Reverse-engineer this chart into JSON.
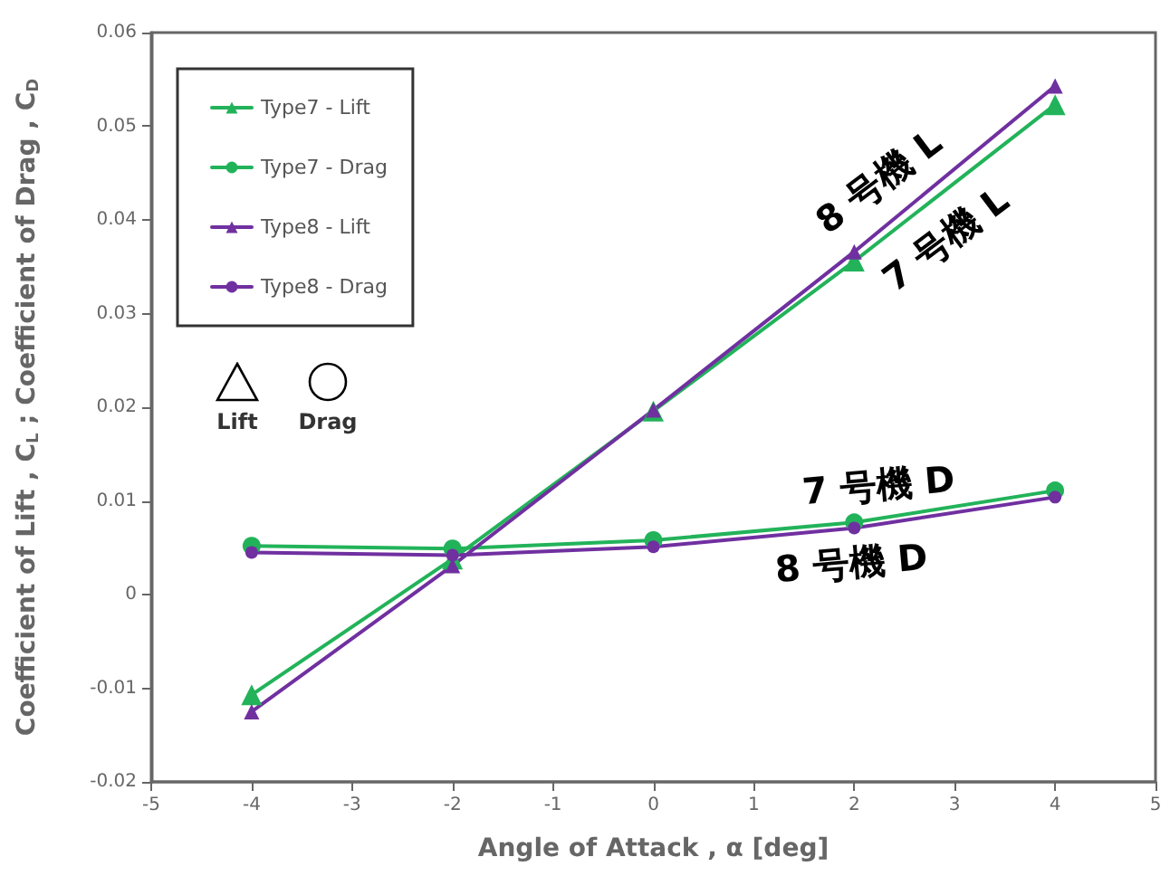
{
  "chart_data": {
    "type": "line",
    "xlabel": "Angle of Attack , α [deg]",
    "ylabel": "Coefficient of Lift , C$_{L}$ ; Coefficient of Drag , C$_{D}$",
    "x": [
      -4,
      -2,
      0,
      2,
      4
    ],
    "series": [
      {
        "name": "Type7 - Lift",
        "color": "#22b35a",
        "marker": "triangle",
        "values": [
          -0.0107,
          0.0038,
          0.0196,
          0.0356,
          0.0523
        ]
      },
      {
        "name": "Type7 - Drag",
        "color": "#22b35a",
        "marker": "circle",
        "values": [
          0.0052,
          0.0049,
          0.0058,
          0.0077,
          0.0111
        ]
      },
      {
        "name": "Type8 - Lift",
        "color": "#7030a0",
        "marker": "triangle",
        "values": [
          -0.0125,
          0.0031,
          0.0197,
          0.0366,
          0.0543
        ]
      },
      {
        "name": "Type8 - Drag",
        "color": "#7030a0",
        "marker": "circle",
        "values": [
          0.0045,
          0.0042,
          0.0051,
          0.0071,
          0.0104
        ]
      }
    ],
    "xlim": [
      -5,
      5
    ],
    "xticks": [
      -5,
      -4,
      -3,
      -2,
      -1,
      0,
      1,
      2,
      3,
      4,
      5
    ],
    "ylim": [
      -0.02,
      0.06
    ],
    "yticks": [
      -0.02,
      -0.01,
      0,
      0.01,
      0.02,
      0.03,
      0.04,
      0.05,
      0.06
    ],
    "annotations": [
      "8 号機 L",
      "7 号機 L",
      "7 号機 D",
      "8 号機 D",
      "Lift",
      "Drag"
    ],
    "legend": "top left",
    "grid": false,
    "line_style": "solid"
  }
}
